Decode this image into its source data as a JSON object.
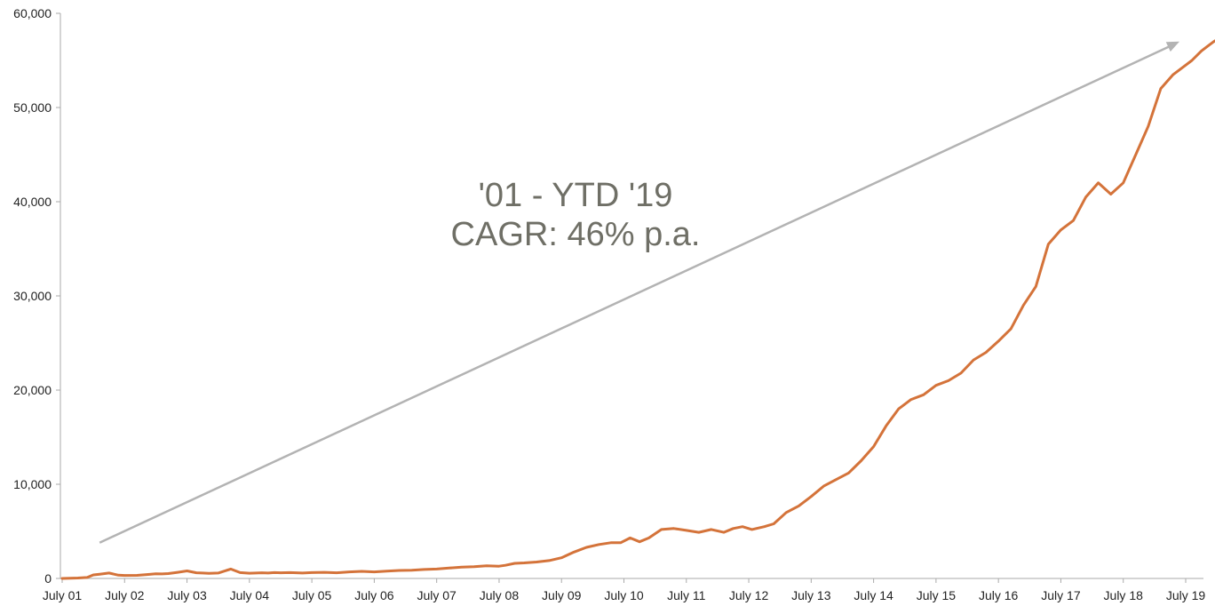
{
  "chart_data": {
    "type": "line",
    "title": "",
    "xlabel": "",
    "ylabel": "",
    "ylim": [
      0,
      60000
    ],
    "xlim": [
      2001.5,
      2019.5
    ],
    "grid": false,
    "y_ticks": [
      0,
      10000,
      20000,
      30000,
      40000,
      50000,
      60000
    ],
    "y_tick_labels": [
      "0",
      "10,000",
      "20,000",
      "30,000",
      "40,000",
      "50,000",
      "60,000"
    ],
    "x_ticks": [
      2001.5,
      2002.5,
      2003.5,
      2004.5,
      2005.5,
      2006.5,
      2007.5,
      2008.5,
      2009.5,
      2010.5,
      2011.5,
      2012.5,
      2013.5,
      2014.5,
      2015.5,
      2016.5,
      2017.5,
      2018.5,
      2019.5
    ],
    "x_tick_labels": [
      "July 01",
      "July 02",
      "July 03",
      "July 04",
      "July 05",
      "July 06",
      "July 07",
      "July 08",
      "July 09",
      "July 10",
      "July 11",
      "July 12",
      "July 13",
      "July 14",
      "July 15",
      "July 16",
      "July 17",
      "July 18",
      "July 19"
    ],
    "series": [
      {
        "color": "#d4733a",
        "x": [
          2001.5,
          2001.75,
          2001.9,
          2002.0,
          2002.1,
          2002.25,
          2002.4,
          2002.5,
          2002.7,
          2002.9,
          2003.0,
          2003.1,
          2003.2,
          2003.35,
          2003.5,
          2003.65,
          2003.75,
          2003.85,
          2004.0,
          2004.2,
          2004.35,
          2004.5,
          2004.7,
          2004.8,
          2004.9,
          2005.0,
          2005.15,
          2005.35,
          2005.5,
          2005.7,
          2005.9,
          2006.1,
          2006.3,
          2006.5,
          2006.7,
          2006.9,
          2007.1,
          2007.3,
          2007.5,
          2007.7,
          2007.9,
          2008.1,
          2008.3,
          2008.5,
          2008.6,
          2008.75,
          2008.9,
          2009.1,
          2009.3,
          2009.5,
          2009.7,
          2009.9,
          2010.1,
          2010.3,
          2010.45,
          2010.6,
          2010.75,
          2010.9,
          2011.1,
          2011.3,
          2011.5,
          2011.7,
          2011.9,
          2012.1,
          2012.25,
          2012.4,
          2012.55,
          2012.75,
          2012.9,
          2013.1,
          2013.3,
          2013.5,
          2013.7,
          2013.9,
          2014.1,
          2014.3,
          2014.5,
          2014.7,
          2014.9,
          2015.1,
          2015.3,
          2015.5,
          2015.7,
          2015.9,
          2016.1,
          2016.3,
          2016.5,
          2016.7,
          2016.9,
          2017.1,
          2017.3,
          2017.5,
          2017.7,
          2017.9,
          2018.1,
          2018.3,
          2018.5,
          2018.7,
          2018.9,
          2019.1,
          2019.3,
          2019.5,
          2019.6,
          2019.75,
          2019.85,
          2019.95,
          2020.0
        ],
        "y": [
          0,
          50,
          100,
          380,
          450,
          580,
          350,
          320,
          330,
          430,
          500,
          480,
          520,
          650,
          800,
          600,
          580,
          550,
          580,
          1000,
          620,
          560,
          600,
          580,
          620,
          600,
          620,
          580,
          620,
          650,
          600,
          700,
          750,
          700,
          780,
          850,
          880,
          950,
          1000,
          1100,
          1200,
          1250,
          1350,
          1300,
          1400,
          1600,
          1650,
          1750,
          1900,
          2200,
          2800,
          3300,
          3600,
          3800,
          3800,
          4300,
          3900,
          4300,
          5200,
          5300,
          5100,
          4900,
          5200,
          4900,
          5300,
          5500,
          5200,
          5500,
          5800,
          7000,
          7700,
          8700,
          9800,
          10500,
          11200,
          12500,
          14000,
          16200,
          18000,
          19000,
          19500,
          20500,
          21000,
          21800,
          23200,
          24000,
          25200,
          26500,
          29000,
          31000,
          35500,
          37000,
          38000,
          40500,
          42000,
          40800,
          42000,
          45000,
          48000,
          52000,
          53500,
          54500,
          55000,
          56000,
          56500,
          57000,
          57200
        ]
      }
    ],
    "annotations": [
      {
        "text": "'01 - YTD '19"
      },
      {
        "text": "CAGR: 46% p.a."
      }
    ],
    "trend_arrow": {
      "color": "#b3b3b3",
      "from": {
        "x": 2002.1,
        "y": 3800
      },
      "to": {
        "x": 2019.4,
        "y": 57000
      }
    },
    "axis_color": "#aaaaaa"
  }
}
